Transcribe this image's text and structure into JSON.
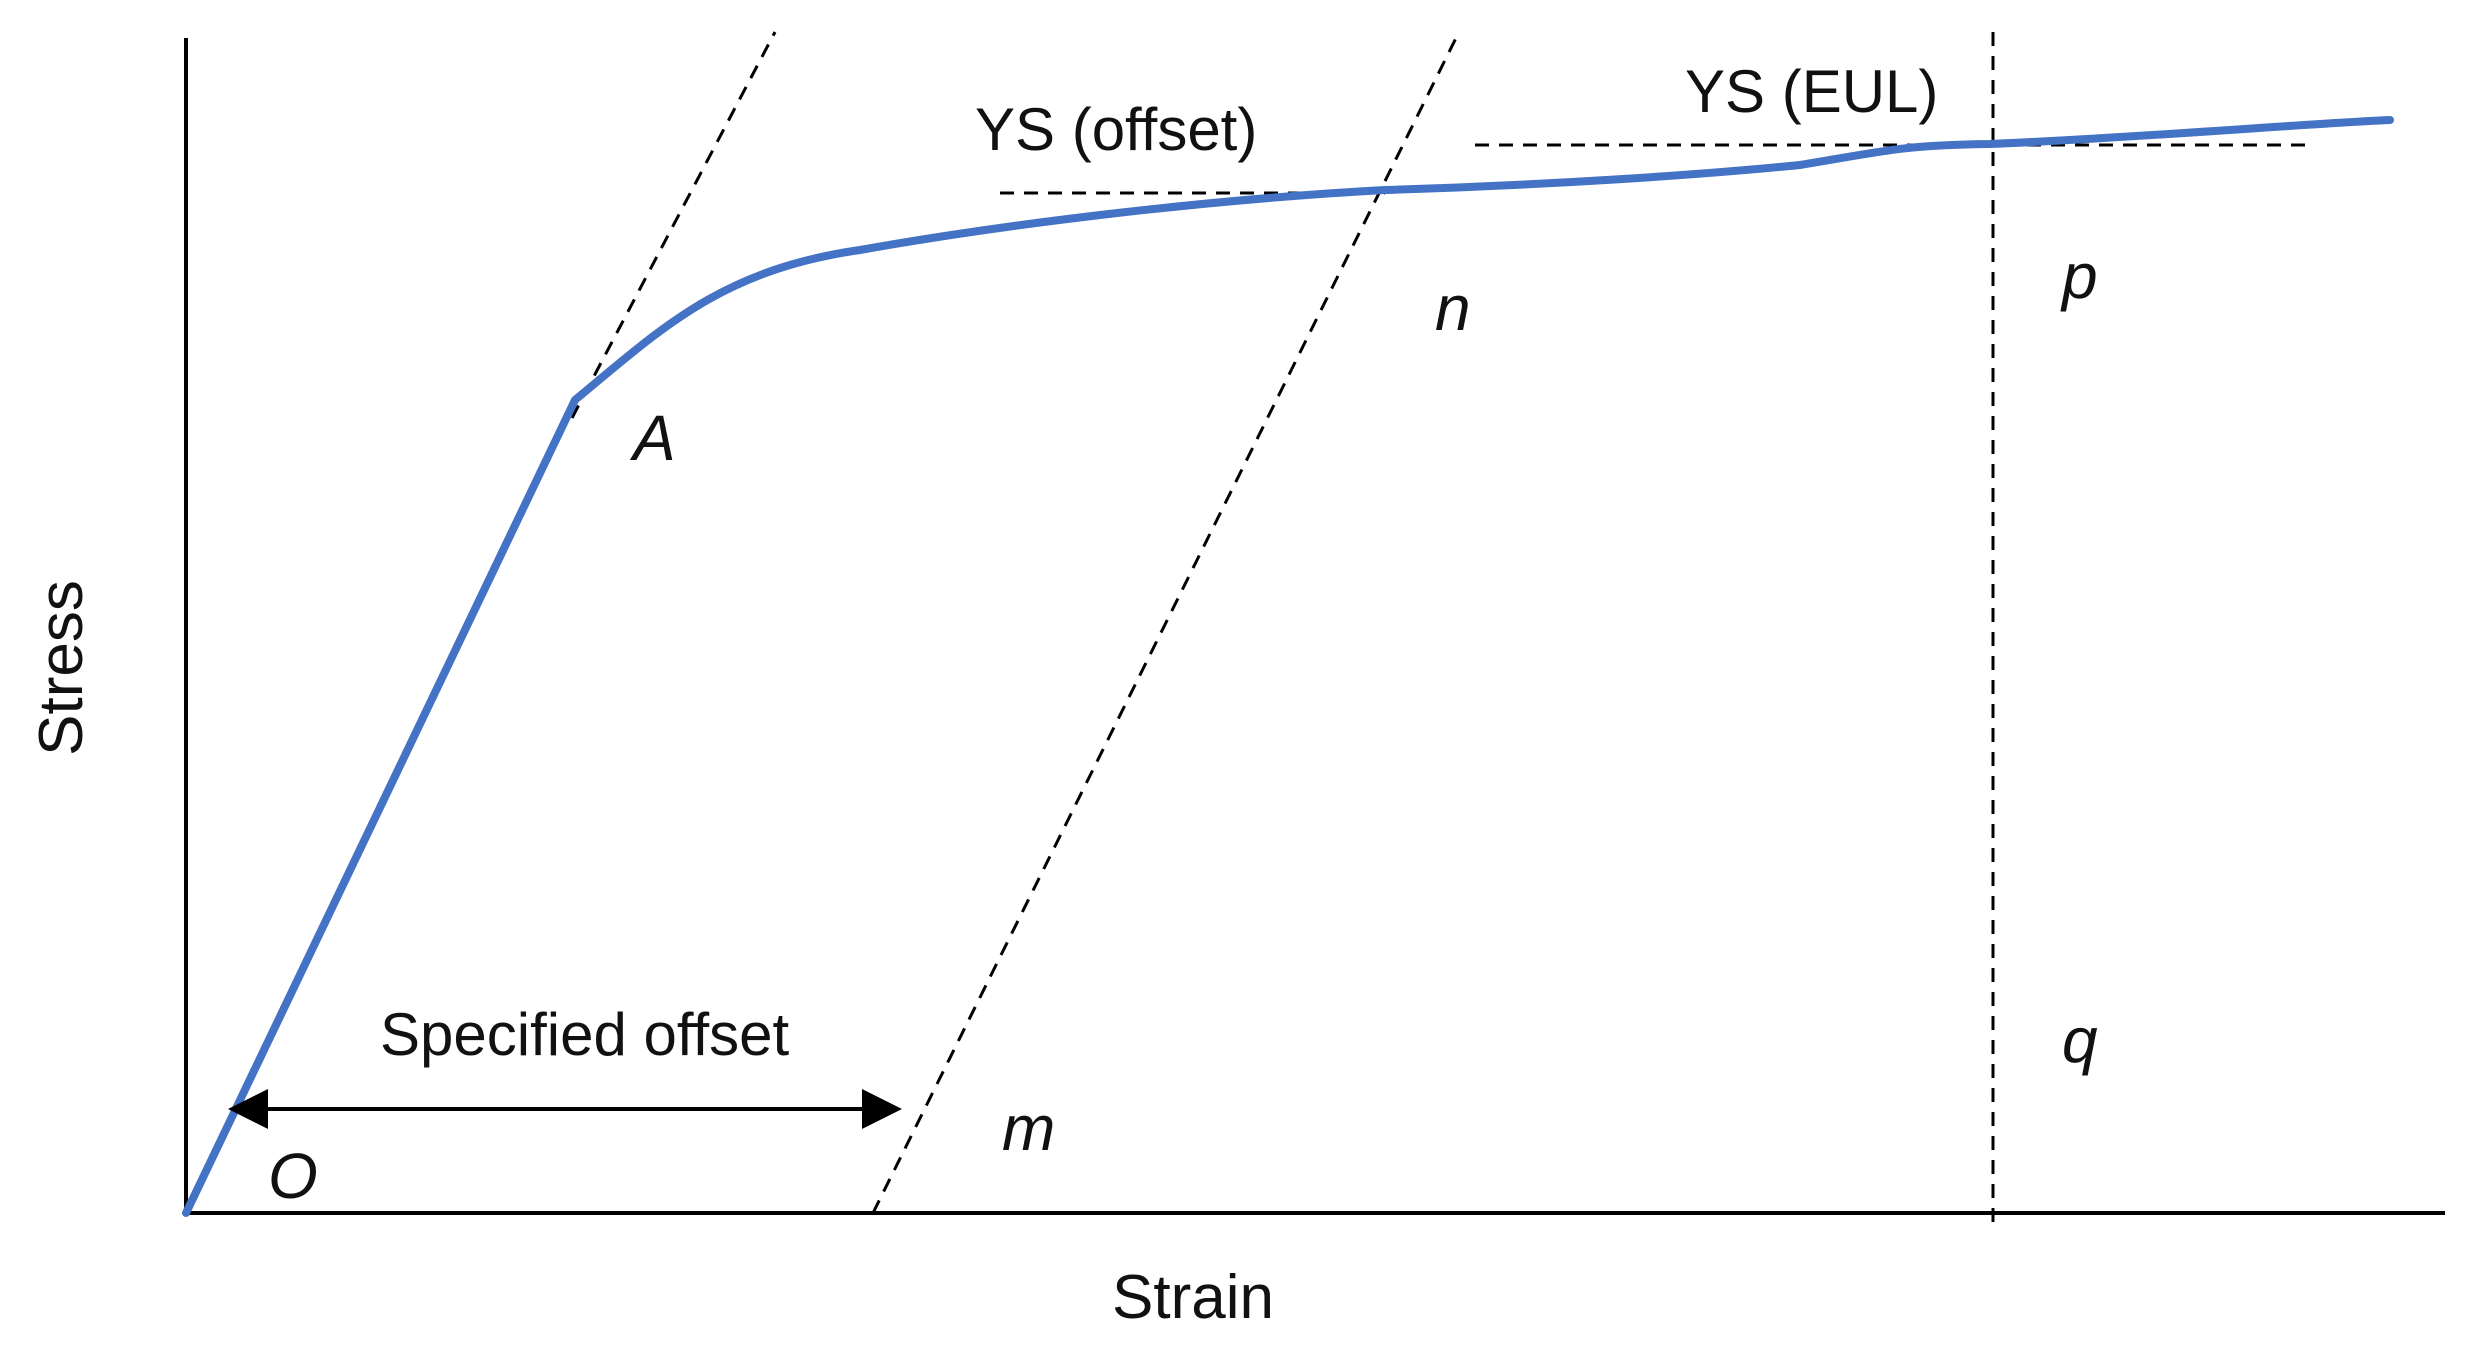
{
  "labels": {
    "x_axis": "Strain",
    "y_axis": "Stress",
    "ys_offset": "YS (offset)",
    "ys_eul": "YS (EUL)",
    "specified_offset": "Specified offset",
    "point_o": "O",
    "point_a": "A",
    "point_m": "m",
    "point_n": "n",
    "point_p": "p",
    "point_q": "q"
  },
  "colors": {
    "curve": "#4472C4",
    "axes": "#000000",
    "dashed": "#000000",
    "text": "#111111"
  }
}
